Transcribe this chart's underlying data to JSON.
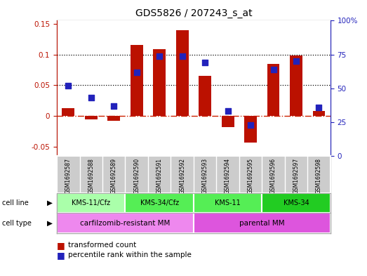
{
  "title": "GDS5826 / 207243_s_at",
  "samples": [
    "GSM1692587",
    "GSM1692588",
    "GSM1692589",
    "GSM1692590",
    "GSM1692591",
    "GSM1692592",
    "GSM1692593",
    "GSM1692594",
    "GSM1692595",
    "GSM1692596",
    "GSM1692597",
    "GSM1692598"
  ],
  "bar_values": [
    0.013,
    -0.005,
    -0.008,
    0.115,
    0.109,
    0.139,
    0.065,
    -0.018,
    -0.043,
    0.085,
    0.098,
    0.008
  ],
  "dot_percentile": [
    52,
    43,
    37,
    62,
    74,
    74,
    69,
    33,
    23,
    64,
    70,
    36
  ],
  "ylim_left": [
    -0.065,
    0.155
  ],
  "ylim_right": [
    0,
    100
  ],
  "yticks_left": [
    -0.05,
    0.0,
    0.05,
    0.1,
    0.15
  ],
  "yticks_right": [
    0,
    25,
    50,
    75,
    100
  ],
  "ytick_labels_right": [
    "0",
    "25",
    "50",
    "75",
    "100%"
  ],
  "hlines": [
    0.05,
    0.1
  ],
  "bar_color": "#bb1100",
  "dot_color": "#2222bb",
  "zero_line_color": "#cc2200",
  "cell_line_data": [
    {
      "label": "KMS-11/Cfz",
      "start": 0,
      "end": 3,
      "color": "#aaffaa"
    },
    {
      "label": "KMS-34/Cfz",
      "start": 3,
      "end": 6,
      "color": "#55ee55"
    },
    {
      "label": "KMS-11",
      "start": 6,
      "end": 9,
      "color": "#55ee55"
    },
    {
      "label": "KMS-34",
      "start": 9,
      "end": 12,
      "color": "#22cc22"
    }
  ],
  "cell_type_data": [
    {
      "label": "carfilzomib-resistant MM",
      "start": 0,
      "end": 6,
      "color": "#ee88ee"
    },
    {
      "label": "parental MM",
      "start": 6,
      "end": 12,
      "color": "#dd55dd"
    }
  ],
  "legend_bar_label": "transformed count",
  "legend_dot_label": "percentile rank within the sample",
  "tick_label_fontsize": 7.5,
  "title_fontsize": 10,
  "bg_color": "#ffffff",
  "panel_bg": "#cccccc",
  "border_color": "#aaaaaa"
}
